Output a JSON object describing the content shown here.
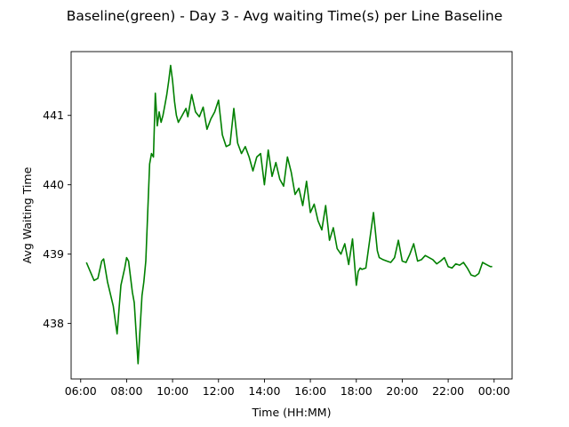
{
  "chart_data": {
    "type": "line",
    "title": "Baseline(green) - Day 3 - Avg waiting Time(s) per Line Baseline",
    "xlabel": "Time (HH:MM)",
    "ylabel": "Avg Waiting Time",
    "x_ticks": [
      "06:00",
      "08:00",
      "10:00",
      "12:00",
      "14:00",
      "16:00",
      "18:00",
      "20:00",
      "22:00",
      "00:00"
    ],
    "y_ticks": [
      "438",
      "439",
      "440",
      "441"
    ],
    "xlim": [
      "05:35",
      "00:47"
    ],
    "ylim": [
      437.2,
      441.92
    ],
    "grid": false,
    "series": [
      {
        "color": "#008000",
        "x": [
          "06:15",
          "06:25",
          "06:35",
          "06:45",
          "06:55",
          "07:00",
          "07:10",
          "07:25",
          "07:35",
          "07:45",
          "07:55",
          "08:00",
          "08:05",
          "08:15",
          "08:20",
          "08:25",
          "08:30",
          "08:40",
          "08:45",
          "08:50",
          "09:00",
          "09:05",
          "09:10",
          "09:15",
          "09:20",
          "09:25",
          "09:30",
          "09:35",
          "09:40",
          "09:45",
          "09:50",
          "09:55",
          "10:00",
          "10:05",
          "10:10",
          "10:15",
          "10:25",
          "10:35",
          "10:40",
          "10:50",
          "11:00",
          "11:10",
          "11:20",
          "11:30",
          "11:40",
          "11:50",
          "12:00",
          "12:10",
          "12:20",
          "12:30",
          "12:40",
          "12:50",
          "13:00",
          "13:10",
          "13:20",
          "13:30",
          "13:40",
          "13:50",
          "14:00",
          "14:10",
          "14:20",
          "14:30",
          "14:40",
          "14:50",
          "15:00",
          "15:10",
          "15:20",
          "15:30",
          "15:40",
          "15:50",
          "16:00",
          "16:10",
          "16:20",
          "16:30",
          "16:40",
          "16:50",
          "17:00",
          "17:10",
          "17:20",
          "17:30",
          "17:40",
          "17:50",
          "18:00",
          "18:05",
          "18:10",
          "18:15",
          "18:25",
          "18:35",
          "18:45",
          "18:55",
          "19:00",
          "19:10",
          "19:20",
          "19:30",
          "19:40",
          "19:50",
          "20:00",
          "20:10",
          "20:20",
          "20:30",
          "20:40",
          "20:50",
          "21:00",
          "21:10",
          "21:20",
          "21:30",
          "21:40",
          "21:50",
          "22:00",
          "22:10",
          "22:20",
          "22:30",
          "22:40",
          "22:50",
          "23:00",
          "23:10",
          "23:20",
          "23:30",
          "23:40",
          "23:50",
          "23:55"
        ],
        "y": [
          438.88,
          438.75,
          438.62,
          438.65,
          438.9,
          438.93,
          438.6,
          438.25,
          437.85,
          438.55,
          438.8,
          438.95,
          438.9,
          438.45,
          438.3,
          437.85,
          437.42,
          438.4,
          438.6,
          438.9,
          440.3,
          440.45,
          440.4,
          441.32,
          440.85,
          441.05,
          440.9,
          441.0,
          441.15,
          441.3,
          441.5,
          441.72,
          441.5,
          441.2,
          441.0,
          440.9,
          441.0,
          441.1,
          440.98,
          441.3,
          441.05,
          440.98,
          441.12,
          440.8,
          440.95,
          441.05,
          441.22,
          440.72,
          440.55,
          440.58,
          441.1,
          440.6,
          440.45,
          440.55,
          440.4,
          440.2,
          440.4,
          440.45,
          440.0,
          440.5,
          440.12,
          440.32,
          440.08,
          439.98,
          440.4,
          440.18,
          439.86,
          439.95,
          439.7,
          440.05,
          439.6,
          439.72,
          439.48,
          439.35,
          439.7,
          439.2,
          439.38,
          439.08,
          439.0,
          439.15,
          438.85,
          439.22,
          438.55,
          438.75,
          438.8,
          438.78,
          438.8,
          439.2,
          439.6,
          439.05,
          438.95,
          438.92,
          438.9,
          438.88,
          438.95,
          439.2,
          438.9,
          438.88,
          439.0,
          439.15,
          438.9,
          438.92,
          438.98,
          438.95,
          438.92,
          438.86,
          438.9,
          438.95,
          438.82,
          438.8,
          438.86,
          438.84,
          438.88,
          438.8,
          438.7,
          438.68,
          438.72,
          438.88,
          438.85,
          438.82,
          438.82
        ]
      }
    ]
  }
}
